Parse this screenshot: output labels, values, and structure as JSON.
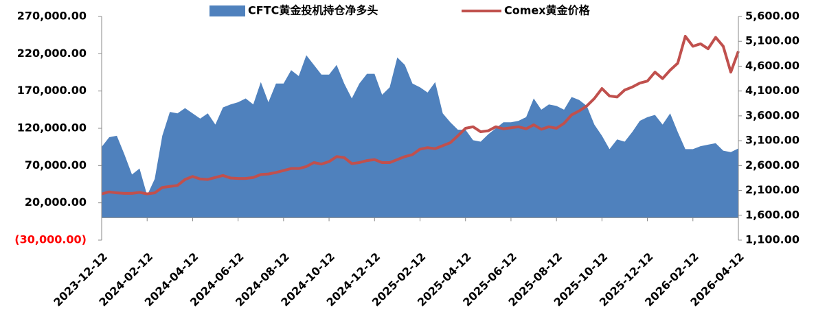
{
  "chart_data": {
    "type": "area_line",
    "categories": [
      "2023-12-12",
      null,
      null,
      null,
      null,
      null,
      "2024-02-12",
      null,
      null,
      null,
      null,
      null,
      "2024-04-12",
      null,
      null,
      null,
      null,
      null,
      "2024-06-12",
      null,
      null,
      null,
      null,
      null,
      "2024-08-12",
      null,
      null,
      null,
      null,
      null,
      "2024-10-12",
      null,
      null,
      null,
      null,
      null,
      "2024-12-12",
      null,
      null,
      null,
      null,
      null,
      "2025-02-12",
      null,
      null,
      null,
      null,
      null,
      "2025-04-12",
      null,
      null,
      null,
      null,
      null,
      "2025-06-12",
      null,
      null,
      null,
      null,
      null,
      "2025-08-12",
      null,
      null,
      null,
      null,
      null,
      "2025-10-12",
      null,
      null,
      null,
      null,
      null,
      "2025-12-12",
      null,
      null,
      null,
      null,
      null,
      "2026-02-12",
      null,
      null,
      null,
      null,
      null,
      "2026-04-12"
    ],
    "series": [
      {
        "name": "CFTC黄金投机持仓净多头",
        "color": "#4f81bd",
        "kind": "area",
        "values": [
          95000,
          108000,
          110000,
          85000,
          58000,
          66000,
          30000,
          52000,
          110000,
          142000,
          140000,
          147000,
          140000,
          133000,
          140000,
          125000,
          148000,
          152000,
          155000,
          160000,
          152000,
          182000,
          155000,
          180000,
          180000,
          198000,
          190000,
          218000,
          205000,
          192000,
          192000,
          205000,
          180000,
          160000,
          180000,
          193000,
          193000,
          165000,
          175000,
          215000,
          205000,
          180000,
          175000,
          168000,
          182000,
          140000,
          128000,
          118000,
          118000,
          104000,
          102000,
          112000,
          120000,
          128000,
          128000,
          130000,
          135000,
          160000,
          145000,
          152000,
          150000,
          145000,
          162000,
          158000,
          150000,
          125000,
          110000,
          92000,
          105000,
          102000,
          115000,
          130000,
          135000,
          138000,
          125000,
          140000,
          115000,
          92000,
          92000,
          96000,
          98000,
          100000,
          90000,
          88000,
          93000
        ]
      },
      {
        "name": "Comex黄金价格",
        "color": "#c0504d",
        "kind": "line",
        "axis": "y2",
        "values": [
          2030,
          2070,
          2050,
          2040,
          2040,
          2060,
          2030,
          2050,
          2160,
          2180,
          2200,
          2320,
          2380,
          2330,
          2320,
          2360,
          2400,
          2350,
          2340,
          2340,
          2360,
          2420,
          2430,
          2460,
          2500,
          2540,
          2540,
          2580,
          2660,
          2630,
          2680,
          2780,
          2760,
          2640,
          2660,
          2700,
          2720,
          2660,
          2660,
          2720,
          2780,
          2820,
          2930,
          2960,
          2940,
          3000,
          3060,
          3200,
          3350,
          3380,
          3280,
          3300,
          3380,
          3340,
          3360,
          3380,
          3340,
          3420,
          3330,
          3380,
          3350,
          3450,
          3620,
          3700,
          3800,
          3950,
          4150,
          4000,
          3980,
          4120,
          4180,
          4260,
          4300,
          4480,
          4350,
          4520,
          4660,
          5200,
          5000,
          5050,
          4950,
          5180,
          5000,
          4480,
          4900
        ]
      }
    ],
    "ylim": [
      -30000,
      270000
    ],
    "yticks": [
      {
        "value": 270000,
        "label": "270,000.00"
      },
      {
        "value": 220000,
        "label": "220,000.00"
      },
      {
        "value": 170000,
        "label": "170,000.00"
      },
      {
        "value": 120000,
        "label": "120,000.00"
      },
      {
        "value": 70000,
        "label": "70,000.00"
      },
      {
        "value": 20000,
        "label": "20,000.00"
      },
      {
        "value": -30000,
        "label": "(30,000.00)"
      }
    ],
    "y2lim": [
      1100,
      5600
    ],
    "y2ticks": [
      {
        "value": 5600,
        "label": "5,600.00"
      },
      {
        "value": 5100,
        "label": "5,100.00"
      },
      {
        "value": 4600,
        "label": "4,600.00"
      },
      {
        "value": 4100,
        "label": "4,100.00"
      },
      {
        "value": 3600,
        "label": "3,600.00"
      },
      {
        "value": 3100,
        "label": "3,100.00"
      },
      {
        "value": 2600,
        "label": "2,600.00"
      },
      {
        "value": 2100,
        "label": "2,100.00"
      },
      {
        "value": 1600,
        "label": "1,600.00"
      },
      {
        "value": 1100,
        "label": "1,100.00"
      }
    ],
    "negative_tick_color": "#ff0000",
    "legend": "top"
  }
}
